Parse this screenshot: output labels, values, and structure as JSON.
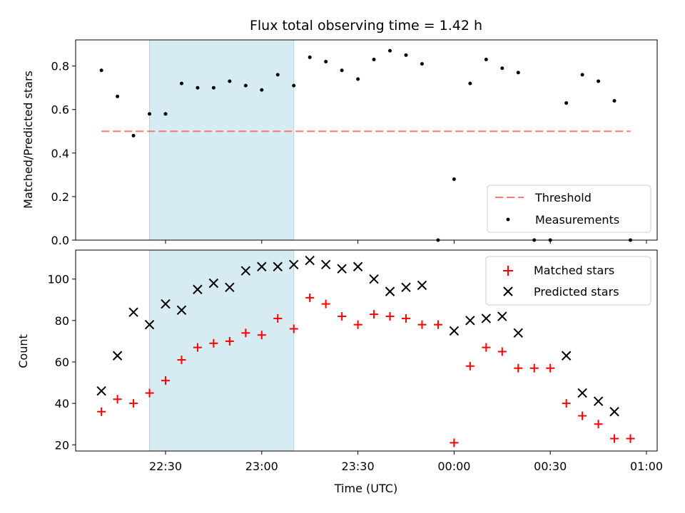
{
  "chart_data": [
    {
      "type": "scatter",
      "title": "Flux total observing time = 1.42 h",
      "xlabel": "",
      "ylabel": "Matched/Predicted stars",
      "ylim": [
        0,
        0.92
      ],
      "yticks": [
        "0.0",
        "0.2",
        "0.4",
        "0.6",
        "0.8"
      ],
      "ytick_values": [
        0,
        0.2,
        0.4,
        0.6,
        0.8
      ],
      "highlight_span": [
        "22:25",
        "23:10"
      ],
      "threshold": {
        "name": "Threshold",
        "value": 0.5,
        "x_start": "22:10",
        "x_end": "00:55",
        "color": "#ff7777"
      },
      "series": [
        {
          "name": "Measurements",
          "color": "#000000",
          "x": [
            "22:10",
            "22:15",
            "22:20",
            "22:25",
            "22:30",
            "22:35",
            "22:40",
            "22:45",
            "22:50",
            "22:55",
            "23:00",
            "23:05",
            "23:10",
            "23:15",
            "23:20",
            "23:25",
            "23:30",
            "23:35",
            "23:40",
            "23:45",
            "23:50",
            "23:55",
            "00:00",
            "00:05",
            "00:10",
            "00:15",
            "00:20",
            "00:25",
            "00:30",
            "00:35",
            "00:40",
            "00:45",
            "00:50",
            "00:55"
          ],
          "y": [
            0.78,
            0.66,
            0.48,
            0.58,
            0.58,
            0.72,
            0.7,
            0.7,
            0.73,
            0.71,
            0.69,
            0.76,
            0.71,
            0.84,
            0.82,
            0.78,
            0.74,
            0.83,
            0.87,
            0.85,
            0.81,
            0.0,
            0.28,
            0.72,
            0.83,
            0.79,
            0.77,
            0.0,
            0.0,
            0.63,
            0.76,
            0.73,
            0.64,
            0.0
          ]
        }
      ],
      "legend": {
        "position": "lower-right",
        "entries": [
          "Threshold",
          "Measurements"
        ]
      }
    },
    {
      "type": "scatter",
      "title": "",
      "xlabel": "Time (UTC)",
      "ylabel": "Count",
      "ylim": [
        17,
        114
      ],
      "yticks": [
        "20",
        "40",
        "60",
        "80",
        "100"
      ],
      "ytick_values": [
        20,
        40,
        60,
        80,
        100
      ],
      "xticks": [
        "22:30",
        "23:00",
        "23:30",
        "00:00",
        "00:30",
        "01:00"
      ],
      "highlight_span": [
        "22:25",
        "23:10"
      ],
      "series": [
        {
          "name": "Matched stars",
          "marker": "+",
          "color": "#ff0000",
          "x": [
            "22:10",
            "22:15",
            "22:20",
            "22:25",
            "22:30",
            "22:35",
            "22:40",
            "22:45",
            "22:50",
            "22:55",
            "23:00",
            "23:05",
            "23:10",
            "23:15",
            "23:20",
            "23:25",
            "23:30",
            "23:35",
            "23:40",
            "23:45",
            "23:50",
            "23:55",
            "00:00",
            "00:05",
            "00:10",
            "00:15",
            "00:20",
            "00:25",
            "00:30",
            "00:35",
            "00:40",
            "00:45",
            "00:50",
            "00:55"
          ],
          "y": [
            36,
            42,
            40,
            45,
            51,
            61,
            67,
            69,
            70,
            74,
            73,
            81,
            76,
            91,
            88,
            82,
            78,
            83,
            82,
            81,
            78,
            78,
            21,
            58,
            67,
            65,
            57,
            57,
            57,
            40,
            34,
            30,
            23,
            23
          ]
        },
        {
          "name": "Predicted stars",
          "marker": "x",
          "color": "#000000",
          "x": [
            "22:10",
            "22:15",
            "22:20",
            "22:25",
            "22:30",
            "22:35",
            "22:40",
            "22:45",
            "22:50",
            "22:55",
            "23:00",
            "23:05",
            "23:10",
            "23:15",
            "23:20",
            "23:25",
            "23:30",
            "23:35",
            "23:40",
            "23:45",
            "23:50",
            "00:00",
            "00:05",
            "00:10",
            "00:15",
            "00:20",
            "00:35",
            "00:40",
            "00:45",
            "00:50"
          ],
          "y": [
            46,
            63,
            84,
            78,
            88,
            85,
            95,
            98,
            96,
            104,
            106,
            106,
            107,
            109,
            107,
            105,
            106,
            100,
            94,
            96,
            97,
            75,
            80,
            81,
            82,
            74,
            63,
            45,
            41,
            36
          ]
        }
      ],
      "legend": {
        "position": "upper-right",
        "entries": [
          "Matched stars",
          "Predicted stars"
        ]
      }
    }
  ]
}
